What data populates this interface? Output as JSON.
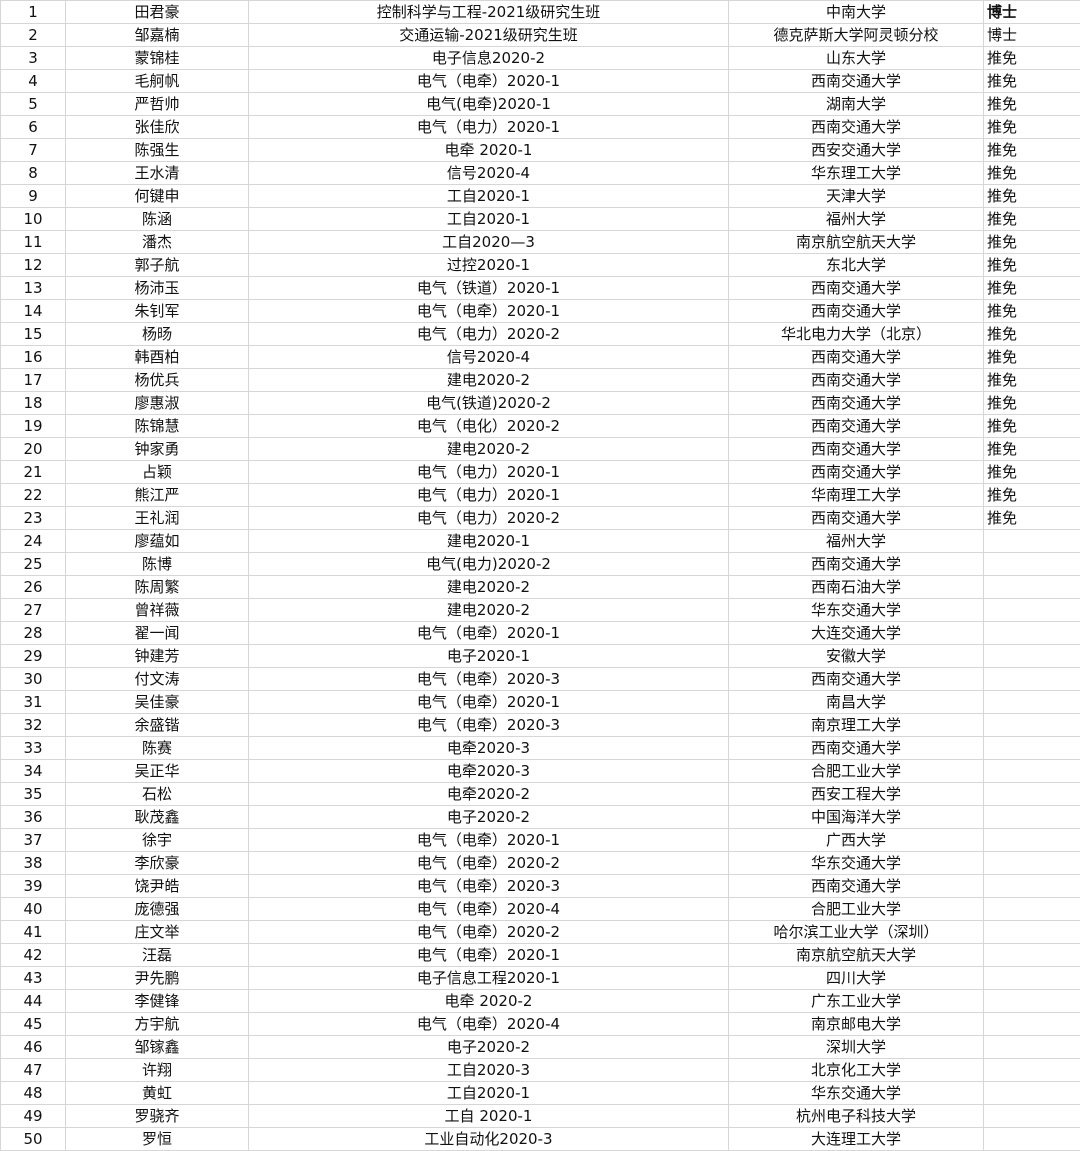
{
  "rows": [
    {
      "no": "1",
      "name": "田君豪",
      "class": "控制科学与工程-2021级研究生班",
      "school": "中南大学",
      "type": "博士"
    },
    {
      "no": "2",
      "name": "邹嘉楠",
      "class": "交通运输-2021级研究生班",
      "school": "德克萨斯大学阿灵顿分校",
      "type": "博士"
    },
    {
      "no": "3",
      "name": "蒙锦桂",
      "class": "电子信息2020-2",
      "school": "山东大学",
      "type": "推免"
    },
    {
      "no": "4",
      "name": "毛舸帆",
      "class": "电气（电牵）2020-1",
      "school": "西南交通大学",
      "type": "推免"
    },
    {
      "no": "5",
      "name": "严哲帅",
      "class": "电气(电牵)2020-1",
      "school": "湖南大学",
      "type": "推免"
    },
    {
      "no": "6",
      "name": "张佳欣",
      "class": "电气（电力）2020-1",
      "school": "西南交通大学",
      "type": "推免"
    },
    {
      "no": "7",
      "name": "陈强生",
      "class": "电牵 2020-1",
      "school": "西安交通大学",
      "type": "推免"
    },
    {
      "no": "8",
      "name": "王水清",
      "class": "信号2020-4",
      "school": "华东理工大学",
      "type": "推免"
    },
    {
      "no": "9",
      "name": "何键申",
      "class": "工自2020-1",
      "school": "天津大学",
      "type": "推免"
    },
    {
      "no": "10",
      "name": "陈涵",
      "class": "工自2020-1",
      "school": "福州大学",
      "type": "推免"
    },
    {
      "no": "11",
      "name": "潘杰",
      "class": "工自2020—3",
      "school": "南京航空航天大学",
      "type": "推免"
    },
    {
      "no": "12",
      "name": "郭子航",
      "class": "过控2020-1",
      "school": "东北大学",
      "type": "推免"
    },
    {
      "no": "13",
      "name": "杨沛玉",
      "class": "电气（铁道）2020-1",
      "school": "西南交通大学",
      "type": "推免"
    },
    {
      "no": "14",
      "name": "朱钊军",
      "class": "电气（电牵）2020-1",
      "school": "西南交通大学",
      "type": "推免"
    },
    {
      "no": "15",
      "name": "杨旸",
      "class": "电气（电力）2020-2",
      "school": "华北电力大学（北京）",
      "type": "推免"
    },
    {
      "no": "16",
      "name": "韩酉柏",
      "class": "信号2020-4",
      "school": "西南交通大学",
      "type": "推免"
    },
    {
      "no": "17",
      "name": "杨优兵",
      "class": "建电2020-2",
      "school": "西南交通大学",
      "type": "推免"
    },
    {
      "no": "18",
      "name": "廖惠淑",
      "class": "电气(铁道)2020-2",
      "school": "西南交通大学",
      "type": "推免"
    },
    {
      "no": "19",
      "name": "陈锦慧",
      "class": "电气（电化）2020-2",
      "school": "西南交通大学",
      "type": "推免"
    },
    {
      "no": "20",
      "name": "钟家勇",
      "class": "建电2020-2",
      "school": "西南交通大学",
      "type": "推免"
    },
    {
      "no": "21",
      "name": "占颖",
      "class": "电气（电力）2020-1",
      "school": "西南交通大学",
      "type": "推免"
    },
    {
      "no": "22",
      "name": "熊江严",
      "class": "电气（电力）2020-1",
      "school": "华南理工大学",
      "type": "推免"
    },
    {
      "no": "23",
      "name": "王礼润",
      "class": "电气（电力）2020-2",
      "school": "西南交通大学",
      "type": "推免"
    },
    {
      "no": "24",
      "name": "廖蕴如",
      "class": "建电2020-1",
      "school": "福州大学",
      "type": ""
    },
    {
      "no": "25",
      "name": "陈博",
      "class": "电气(电力)2020-2",
      "school": "西南交通大学",
      "type": ""
    },
    {
      "no": "26",
      "name": "陈周繁",
      "class": "建电2020-2",
      "school": "西南石油大学",
      "type": ""
    },
    {
      "no": "27",
      "name": "曾祥薇",
      "class": "建电2020-2",
      "school": "华东交通大学",
      "type": ""
    },
    {
      "no": "28",
      "name": "翟一闻",
      "class": "电气（电牵）2020-1",
      "school": "大连交通大学",
      "type": ""
    },
    {
      "no": "29",
      "name": "钟建芳",
      "class": "电子2020-1",
      "school": "安徽大学",
      "type": ""
    },
    {
      "no": "30",
      "name": "付文涛",
      "class": "电气（电牵）2020-3",
      "school": "西南交通大学",
      "type": ""
    },
    {
      "no": "31",
      "name": "吴佳豪",
      "class": "电气（电牵）2020-1",
      "school": "南昌大学",
      "type": ""
    },
    {
      "no": "32",
      "name": "余盛锴",
      "class": "电气（电牵）2020-3",
      "school": "南京理工大学",
      "type": ""
    },
    {
      "no": "33",
      "name": "陈赛",
      "class": "电牵2020-3",
      "school": "西南交通大学",
      "type": ""
    },
    {
      "no": "34",
      "name": "吴正华",
      "class": "电牵2020-3",
      "school": "合肥工业大学",
      "type": ""
    },
    {
      "no": "35",
      "name": "石松",
      "class": "电牵2020-2",
      "school": "西安工程大学",
      "type": ""
    },
    {
      "no": "36",
      "name": "耿茂鑫",
      "class": "电子2020-2",
      "school": "中国海洋大学",
      "type": ""
    },
    {
      "no": "37",
      "name": "徐宇",
      "class": "电气（电牵）2020-1",
      "school": "广西大学",
      "type": ""
    },
    {
      "no": "38",
      "name": "李欣豪",
      "class": "电气（电牵）2020-2",
      "school": "华东交通大学",
      "type": ""
    },
    {
      "no": "39",
      "name": "饶尹皓",
      "class": "电气（电牵）2020-3",
      "school": "西南交通大学",
      "type": ""
    },
    {
      "no": "40",
      "name": "庞德强",
      "class": "电气（电牵）2020-4",
      "school": "合肥工业大学",
      "type": ""
    },
    {
      "no": "41",
      "name": "庄文举",
      "class": "电气（电牵）2020-2",
      "school": "哈尔滨工业大学（深圳）",
      "type": ""
    },
    {
      "no": "42",
      "name": "汪磊",
      "class": "电气（电牵）2020-1",
      "school": "南京航空航天大学",
      "type": ""
    },
    {
      "no": "43",
      "name": "尹先鹏",
      "class": "电子信息工程2020-1",
      "school": "四川大学",
      "type": ""
    },
    {
      "no": "44",
      "name": "李健锋",
      "class": "电牵 2020-2",
      "school": "广东工业大学",
      "type": ""
    },
    {
      "no": "45",
      "name": "方宇航",
      "class": "电气（电牵）2020-4",
      "school": "南京邮电大学",
      "type": ""
    },
    {
      "no": "46",
      "name": "邹镓鑫",
      "class": "电子2020-2",
      "school": "深圳大学",
      "type": ""
    },
    {
      "no": "47",
      "name": "许翔",
      "class": "工自2020-3",
      "school": "北京化工大学",
      "type": ""
    },
    {
      "no": "48",
      "name": "黄虹",
      "class": "工自2020-1",
      "school": "华东交通大学",
      "type": ""
    },
    {
      "no": "49",
      "name": "罗骁齐",
      "class": "工自 2020-1",
      "school": "杭州电子科技大学",
      "type": ""
    },
    {
      "no": "50",
      "name": "罗恒",
      "class": "工业自动化2020-3",
      "school": "大连理工大学",
      "type": ""
    }
  ]
}
